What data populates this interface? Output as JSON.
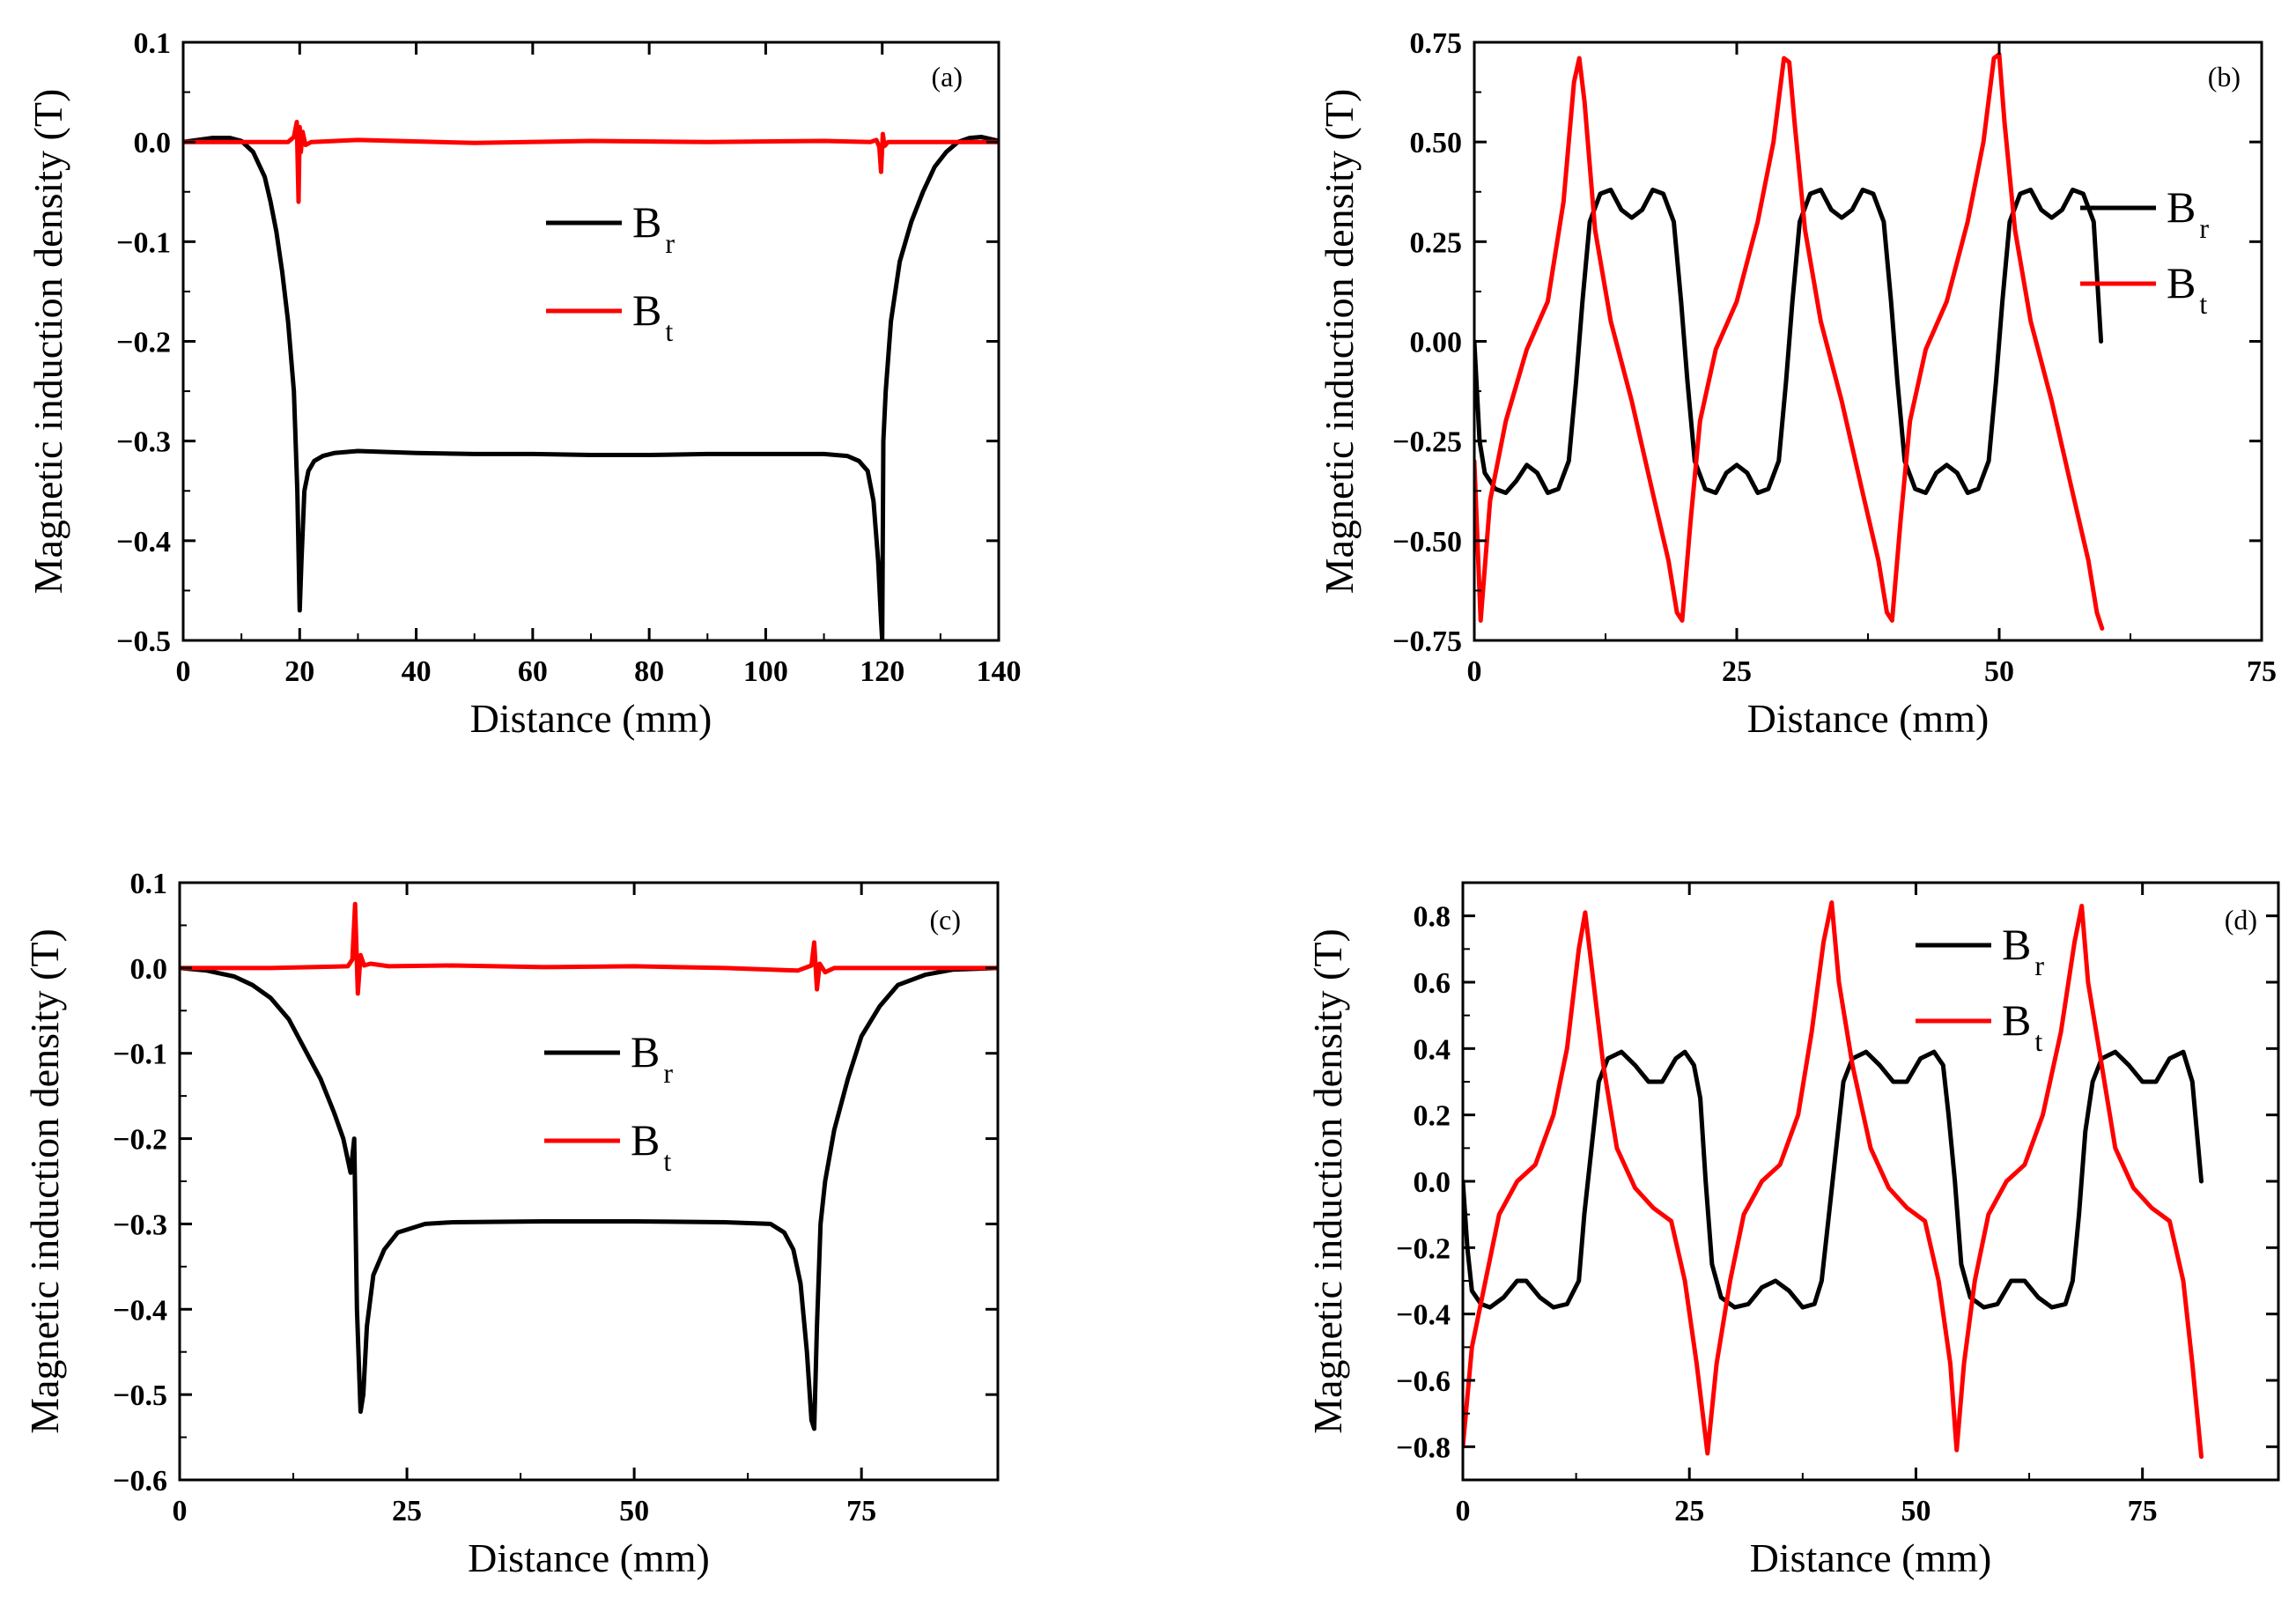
{
  "chart_data": [
    {
      "id": "a",
      "type": "line",
      "panel_label": "(a)",
      "xlabel": "Distance (mm)",
      "ylabel": "Magnetic induction density (T)",
      "xlim": [
        0,
        140
      ],
      "ylim": [
        -0.5,
        0.1
      ],
      "xticks": [
        0,
        20,
        40,
        60,
        80,
        100,
        120,
        140
      ],
      "xtick_labels": [
        "0",
        "20",
        "40",
        "60",
        "80",
        "100",
        "120",
        "140"
      ],
      "yticks": [
        0.1,
        0.0,
        -0.1,
        -0.2,
        -0.3,
        -0.4,
        -0.5
      ],
      "ytick_labels": [
        "0.1",
        "0.0",
        "−0.1",
        "−0.2",
        "−0.3",
        "−0.4",
        "−0.5"
      ],
      "legend_position": "center",
      "series": [
        {
          "name": "B",
          "sub": "r",
          "color": "#000000",
          "x": [
            0,
            5,
            8,
            10,
            12,
            14,
            15,
            16,
            17,
            18,
            19,
            19.6,
            20.0,
            20.3,
            20.8,
            21.5,
            22.5,
            24,
            26,
            30,
            40,
            50,
            60,
            70,
            80,
            90,
            100,
            110,
            114,
            116,
            117.5,
            118.5,
            119.3,
            119.8,
            120.0,
            120.2,
            120.6,
            121.5,
            123,
            125,
            127,
            129,
            131,
            133,
            135,
            137,
            140
          ],
          "values": [
            0,
            0.004,
            0.004,
            0.001,
            -0.01,
            -0.035,
            -0.06,
            -0.09,
            -0.13,
            -0.18,
            -0.25,
            -0.35,
            -0.47,
            -0.42,
            -0.35,
            -0.33,
            -0.32,
            -0.315,
            -0.312,
            -0.31,
            -0.312,
            -0.313,
            -0.313,
            -0.314,
            -0.314,
            -0.313,
            -0.313,
            -0.313,
            -0.315,
            -0.32,
            -0.33,
            -0.36,
            -0.42,
            -0.48,
            -0.5,
            -0.3,
            -0.25,
            -0.18,
            -0.12,
            -0.08,
            -0.05,
            -0.025,
            -0.01,
            0,
            0.004,
            0.005,
            0.001
          ]
        },
        {
          "name": "B",
          "sub": "t",
          "color": "#ff0000",
          "x": [
            0,
            10,
            18,
            19,
            19.5,
            19.8,
            20.0,
            20.2,
            20.5,
            21,
            22,
            30,
            50,
            70,
            90,
            110,
            118,
            119,
            119.5,
            119.8,
            120.1,
            120.4,
            121,
            125,
            140
          ],
          "values": [
            0,
            0,
            0,
            0.005,
            0.02,
            -0.06,
            0.015,
            -0.01,
            0.01,
            -0.003,
            0,
            0.002,
            -0.001,
            0.001,
            0,
            0.001,
            0,
            0.002,
            -0.005,
            -0.03,
            0.008,
            -0.004,
            0,
            0,
            0
          ]
        }
      ],
      "legend": [
        {
          "name": "B",
          "sub": "r"
        },
        {
          "name": "B",
          "sub": "t"
        }
      ]
    },
    {
      "id": "b",
      "type": "line",
      "panel_label": "(b)",
      "xlabel": "Distance (mm)",
      "ylabel": "Magnetic induction density (T)",
      "xlim": [
        0,
        75
      ],
      "ylim": [
        -0.75,
        0.75
      ],
      "xticks": [
        0,
        25,
        50,
        75
      ],
      "xtick_labels": [
        "0",
        "25",
        "50",
        "75"
      ],
      "yticks": [
        0.75,
        0.5,
        0.25,
        0.0,
        -0.25,
        -0.5,
        -0.75
      ],
      "ytick_labels": [
        "0.75",
        "0.50",
        "0.25",
        "0.00",
        "−0.25",
        "−0.50",
        "−0.75"
      ],
      "legend_position": "right",
      "series": [
        {
          "name": "B",
          "sub": "r",
          "color": "#000000",
          "x": [
            0,
            0.5,
            1,
            2,
            3,
            4,
            5,
            6,
            7,
            8,
            9,
            9.7,
            10.3,
            11,
            12,
            13,
            14,
            15,
            16,
            17,
            18,
            19,
            19.7,
            20.3,
            21,
            22,
            23,
            24,
            25,
            26,
            27,
            28,
            29,
            29.7,
            30.3,
            31,
            32,
            33,
            34,
            35,
            36,
            37,
            38,
            39,
            39.7,
            40.3,
            41,
            42,
            43,
            44,
            45,
            46,
            47,
            48,
            49,
            49.7,
            50.3,
            51,
            52,
            53,
            54,
            55,
            56,
            57,
            58,
            59,
            59.7
          ],
          "values": [
            0,
            -0.25,
            -0.33,
            -0.37,
            -0.38,
            -0.35,
            -0.31,
            -0.33,
            -0.38,
            -0.37,
            -0.3,
            -0.1,
            0.1,
            0.3,
            0.37,
            0.38,
            0.33,
            0.31,
            0.33,
            0.38,
            0.37,
            0.3,
            0.1,
            -0.1,
            -0.3,
            -0.37,
            -0.38,
            -0.33,
            -0.31,
            -0.33,
            -0.38,
            -0.37,
            -0.3,
            -0.1,
            0.1,
            0.3,
            0.37,
            0.38,
            0.33,
            0.31,
            0.33,
            0.38,
            0.37,
            0.3,
            0.1,
            -0.1,
            -0.3,
            -0.37,
            -0.38,
            -0.33,
            -0.31,
            -0.33,
            -0.38,
            -0.37,
            -0.3,
            -0.1,
            0.1,
            0.3,
            0.37,
            0.38,
            0.33,
            0.31,
            0.33,
            0.38,
            0.37,
            0.3,
            0.0
          ]
        },
        {
          "name": "B",
          "sub": "t",
          "color": "#ff0000",
          "x": [
            0,
            0.6,
            1.5,
            3,
            5,
            7,
            8.5,
            9.5,
            10,
            10.5,
            11.5,
            13,
            15,
            17,
            18.5,
            19.3,
            19.8,
            20.6,
            21.5,
            23,
            25,
            27,
            28.5,
            29.5,
            30,
            30.5,
            31.5,
            33,
            35,
            37,
            38.5,
            39.3,
            39.8,
            40.6,
            41.5,
            43,
            45,
            47,
            48.5,
            49.5,
            50,
            50.5,
            51.5,
            53,
            55,
            57,
            58.5,
            59.3,
            59.8
          ],
          "values": [
            -0.3,
            -0.7,
            -0.4,
            -0.2,
            -0.02,
            0.1,
            0.35,
            0.65,
            0.71,
            0.6,
            0.28,
            0.05,
            -0.15,
            -0.38,
            -0.55,
            -0.68,
            -0.7,
            -0.45,
            -0.2,
            -0.02,
            0.1,
            0.3,
            0.5,
            0.71,
            0.7,
            0.55,
            0.28,
            0.05,
            -0.15,
            -0.38,
            -0.55,
            -0.68,
            -0.7,
            -0.45,
            -0.2,
            -0.02,
            0.1,
            0.3,
            0.5,
            0.71,
            0.72,
            0.55,
            0.28,
            0.05,
            -0.15,
            -0.38,
            -0.55,
            -0.68,
            -0.72
          ]
        }
      ],
      "legend": [
        {
          "name": "B",
          "sub": "r"
        },
        {
          "name": "B",
          "sub": "t"
        }
      ]
    },
    {
      "id": "c",
      "type": "line",
      "panel_label": "(c)",
      "xlabel": "Distance (mm)",
      "ylabel": "Magnetic induction density (T)",
      "xlim": [
        0,
        90
      ],
      "ylim": [
        -0.6,
        0.1
      ],
      "xticks": [
        0,
        25,
        50,
        75
      ],
      "xtick_labels": [
        "0",
        "25",
        "50",
        "75"
      ],
      "yticks": [
        0.1,
        0.0,
        -0.1,
        -0.2,
        -0.3,
        -0.4,
        -0.5,
        -0.6
      ],
      "ytick_labels": [
        "0.1",
        "0.0",
        "−0.1",
        "−0.2",
        "−0.3",
        "−0.4",
        "−0.5",
        "−0.6"
      ],
      "legend_position": "center",
      "series": [
        {
          "name": "B",
          "sub": "r",
          "color": "#000000",
          "x": [
            0,
            3,
            6,
            8,
            10,
            12,
            14,
            15.5,
            17,
            18,
            18.8,
            19.2,
            19.5,
            19.9,
            20.2,
            20.6,
            21.3,
            22.5,
            24,
            27,
            30,
            40,
            50,
            60,
            65,
            66.5,
            67.5,
            68.3,
            69,
            69.5,
            69.8,
            70.1,
            70.5,
            71,
            72,
            73.5,
            75,
            77,
            79,
            82,
            85,
            90
          ],
          "values": [
            0,
            -0.003,
            -0.01,
            -0.02,
            -0.035,
            -0.06,
            -0.1,
            -0.13,
            -0.17,
            -0.2,
            -0.24,
            -0.2,
            -0.4,
            -0.52,
            -0.5,
            -0.42,
            -0.36,
            -0.33,
            -0.31,
            -0.3,
            -0.298,
            -0.297,
            -0.297,
            -0.298,
            -0.3,
            -0.31,
            -0.33,
            -0.37,
            -0.45,
            -0.53,
            -0.54,
            -0.42,
            -0.3,
            -0.25,
            -0.19,
            -0.13,
            -0.08,
            -0.045,
            -0.02,
            -0.008,
            -0.002,
            0
          ]
        },
        {
          "name": "B",
          "sub": "t",
          "color": "#ff0000",
          "x": [
            0,
            10,
            18.5,
            19,
            19.3,
            19.6,
            19.9,
            20.3,
            21,
            23,
            30,
            40,
            50,
            60,
            68,
            69.5,
            69.8,
            70.1,
            70.4,
            71,
            72,
            80,
            90
          ],
          "values": [
            0,
            0,
            0.002,
            0.01,
            0.075,
            -0.03,
            0.015,
            0.003,
            0.005,
            0.002,
            0.003,
            0.001,
            0.002,
            0,
            -0.003,
            0.003,
            0.03,
            -0.025,
            0.005,
            -0.005,
            0,
            0,
            0
          ]
        }
      ],
      "legend": [
        {
          "name": "B",
          "sub": "r"
        },
        {
          "name": "B",
          "sub": "t"
        }
      ]
    },
    {
      "id": "d",
      "type": "line",
      "panel_label": "(d)",
      "xlabel": "Distance (mm)",
      "ylabel": "Magnetic induction density (T)",
      "xlim": [
        0,
        90
      ],
      "ylim": [
        -0.9,
        0.9
      ],
      "xticks": [
        0,
        25,
        50,
        75
      ],
      "xtick_labels": [
        "0",
        "25",
        "50",
        "75"
      ],
      "yticks": [
        0.8,
        0.6,
        0.4,
        0.2,
        0.0,
        -0.2,
        -0.4,
        -0.6,
        -0.8
      ],
      "ytick_labels": [
        "0.8",
        "0.6",
        "0.4",
        "0.2",
        "0.0",
        "−0.2",
        "−0.4",
        "−0.6",
        "−0.8"
      ],
      "legend_position": "top-right",
      "series": [
        {
          "name": "B",
          "sub": "r",
          "color": "#000000",
          "x": [
            0,
            0.5,
            1,
            2,
            3,
            4.5,
            6,
            7,
            8.5,
            10,
            11.5,
            12.8,
            13.4,
            14.2,
            15,
            16,
            17.5,
            19,
            20.5,
            22,
            23.5,
            24.5,
            25.5,
            26.2,
            26.8,
            27.5,
            28.5,
            30,
            31.5,
            33,
            34.5,
            36,
            37.5,
            38.8,
            39.6,
            40.4,
            41.2,
            42,
            43,
            44.5,
            46,
            47.5,
            49,
            50.5,
            52,
            53,
            53.6,
            54.3,
            55,
            56,
            57.5,
            59,
            60.5,
            62,
            63.5,
            65,
            66.5,
            67.3,
            68,
            68.7,
            69.5,
            70.5,
            72,
            73.5,
            75,
            76.5,
            78,
            79.5,
            80.5,
            81.5
          ],
          "values": [
            0,
            -0.2,
            -0.33,
            -0.37,
            -0.38,
            -0.35,
            -0.3,
            -0.3,
            -0.35,
            -0.38,
            -0.37,
            -0.3,
            -0.1,
            0.1,
            0.3,
            0.37,
            0.39,
            0.35,
            0.3,
            0.3,
            0.37,
            0.39,
            0.35,
            0.25,
            0.0,
            -0.25,
            -0.35,
            -0.38,
            -0.37,
            -0.32,
            -0.3,
            -0.33,
            -0.38,
            -0.37,
            -0.3,
            -0.1,
            0.1,
            0.3,
            0.37,
            0.39,
            0.35,
            0.3,
            0.3,
            0.37,
            0.39,
            0.35,
            0.2,
            0.0,
            -0.25,
            -0.35,
            -0.38,
            -0.37,
            -0.3,
            -0.3,
            -0.35,
            -0.38,
            -0.37,
            -0.3,
            -0.1,
            0.15,
            0.3,
            0.37,
            0.39,
            0.35,
            0.3,
            0.3,
            0.37,
            0.39,
            0.3,
            0.0
          ]
        },
        {
          "name": "B",
          "sub": "t",
          "color": "#ff0000",
          "x": [
            0,
            1,
            2.5,
            4,
            6,
            8,
            10,
            11.5,
            12.8,
            13.5,
            14.2,
            15.5,
            17,
            19,
            21,
            23,
            24.5,
            25.8,
            27,
            28,
            29.5,
            31,
            33,
            35,
            37,
            38.5,
            39.8,
            40.7,
            41.5,
            43,
            45,
            47,
            49,
            51,
            52.5,
            53.8,
            54.5,
            55.3,
            56.5,
            58,
            60,
            62,
            64,
            66,
            67.5,
            68.3,
            69,
            70.5,
            72,
            74,
            76,
            78,
            79.5,
            80.5,
            81.5
          ],
          "values": [
            -0.8,
            -0.5,
            -0.3,
            -0.1,
            0.0,
            0.05,
            0.2,
            0.4,
            0.7,
            0.81,
            0.65,
            0.35,
            0.1,
            -0.02,
            -0.08,
            -0.12,
            -0.3,
            -0.55,
            -0.82,
            -0.55,
            -0.3,
            -0.1,
            0.0,
            0.05,
            0.2,
            0.45,
            0.72,
            0.84,
            0.6,
            0.35,
            0.1,
            -0.02,
            -0.08,
            -0.12,
            -0.3,
            -0.55,
            -0.81,
            -0.55,
            -0.3,
            -0.1,
            0.0,
            0.05,
            0.2,
            0.45,
            0.72,
            0.83,
            0.6,
            0.35,
            0.1,
            -0.02,
            -0.08,
            -0.12,
            -0.3,
            -0.55,
            -0.83
          ]
        }
      ],
      "legend": [
        {
          "name": "B",
          "sub": "r"
        },
        {
          "name": "B",
          "sub": "t"
        }
      ]
    }
  ]
}
